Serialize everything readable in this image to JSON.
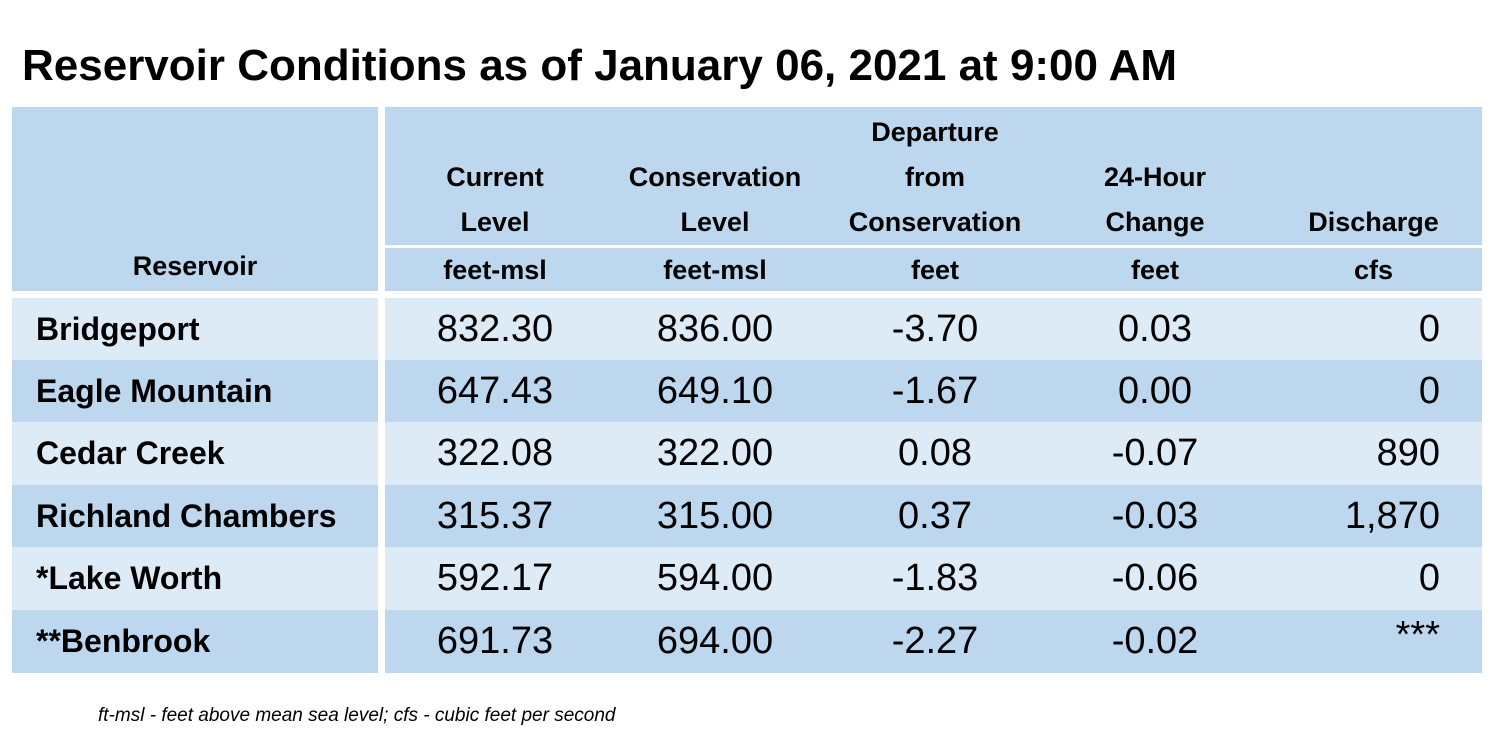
{
  "title": "Reservoir Conditions as of January 06, 2021 at 9:00 AM",
  "columns": [
    {
      "label_lines": [
        "Reservoir"
      ],
      "unit": ""
    },
    {
      "label_lines": [
        "Current",
        "Level"
      ],
      "unit": "feet-msl"
    },
    {
      "label_lines": [
        "Conservation",
        "Level"
      ],
      "unit": "feet-msl"
    },
    {
      "label_lines": [
        "Departure",
        "from",
        "Conservation"
      ],
      "unit": "feet"
    },
    {
      "label_lines": [
        "24-Hour",
        "Change"
      ],
      "unit": "feet"
    },
    {
      "label_lines": [
        "Discharge"
      ],
      "unit": "cfs"
    }
  ],
  "rows": [
    {
      "name": "Bridgeport",
      "current": "832.30",
      "conservation": "836.00",
      "departure": "-3.70",
      "change": "0.03",
      "discharge": "0"
    },
    {
      "name": "Eagle Mountain",
      "current": "647.43",
      "conservation": "649.10",
      "departure": "-1.67",
      "change": "0.00",
      "discharge": "0"
    },
    {
      "name": "Cedar Creek",
      "current": "322.08",
      "conservation": "322.00",
      "departure": "0.08",
      "change": "-0.07",
      "discharge": "890"
    },
    {
      "name": "Richland Chambers",
      "current": "315.37",
      "conservation": "315.00",
      "departure": "0.37",
      "change": "-0.03",
      "discharge": "1,870"
    },
    {
      "name": "*Lake Worth",
      "current": "592.17",
      "conservation": "594.00",
      "departure": "-1.83",
      "change": "-0.06",
      "discharge": "0"
    },
    {
      "name": "**Benbrook",
      "current": "691.73",
      "conservation": "694.00",
      "departure": "-2.27",
      "change": "-0.02",
      "discharge": "***"
    }
  ],
  "footnote": "ft-msl - feet above mean sea level; cfs - cubic feet per second",
  "colors": {
    "header": "#bdd7ee",
    "row_light": "#ddebf7",
    "row_dark": "#bdd7ee"
  }
}
